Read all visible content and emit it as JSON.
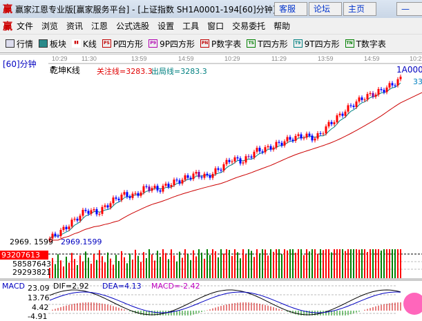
{
  "window": {
    "logo": "赢",
    "title": "赢家江恩专业版[赢家服务平台] - [上证指数  SH1A0001-194[60]分钟]",
    "buttons": [
      "客服",
      "论坛",
      "主页"
    ]
  },
  "menu": {
    "logo": "赢",
    "items": [
      "文件",
      "浏览",
      "资讯",
      "江恩",
      "公式选股",
      "设置",
      "工具",
      "窗口",
      "交易委托",
      "帮助"
    ]
  },
  "toolbar": {
    "items": [
      {
        "icon": "grid-icon",
        "label": "行情"
      },
      {
        "icon": "blocks-icon",
        "label": "板块"
      },
      {
        "icon": "candles-icon",
        "label": "K线"
      },
      {
        "icon": "PS",
        "color": "#c00000",
        "label": "P四方形"
      },
      {
        "icon": "P9",
        "color": "#b000b0",
        "label": "9P四方形"
      },
      {
        "icon": "PN",
        "color": "#c00000",
        "label": "P数字表"
      },
      {
        "icon": "TS",
        "color": "#008000",
        "label": "T四方形"
      },
      {
        "icon": "T9",
        "color": "#008080",
        "label": "9T四方形"
      },
      {
        "icon": "TN",
        "color": "#008000",
        "label": "T数字表"
      }
    ]
  },
  "chart": {
    "period": "[60]分钟",
    "indicator": "乾坤K线",
    "focus_line": "关注线=3283.3",
    "exit_line": "出局线=3283.3",
    "symbol": "1A000",
    "right_cut": "33",
    "time_labels": [
      "10:29",
      "11:30",
      "13:59",
      "14:59",
      "10:29",
      "11:29",
      "13:59",
      "14:59",
      "10:29"
    ],
    "low_label": "2969.1599",
    "low_axis": "2969. 1599",
    "volume_axis": [
      "93207613",
      "58587643",
      "29293821"
    ],
    "macd": {
      "name": "MACD",
      "dif": "DIF=2.92",
      "dea": "DEA=4.13",
      "macd": "MACD=-2.42",
      "axis": [
        "23.09",
        "13.76",
        "4.42",
        "-4.91"
      ]
    },
    "colors": {
      "up": "#ff0000",
      "down": "#008000",
      "purple": "#8000a0",
      "blue": "#0000ff",
      "ma1": "#008080",
      "ma2": "#cc0000"
    }
  },
  "chart_data": {
    "type": "candlestick",
    "price_path": [
      2975,
      2990,
      3010,
      3030,
      3025,
      3045,
      3060,
      3058,
      3075,
      3070,
      3082,
      3090,
      3100,
      3095,
      3110,
      3130,
      3125,
      3145,
      3150,
      3160,
      3170,
      3175,
      3170,
      3195,
      3215,
      3235,
      3250,
      3258,
      3270,
      3285
    ]
  }
}
